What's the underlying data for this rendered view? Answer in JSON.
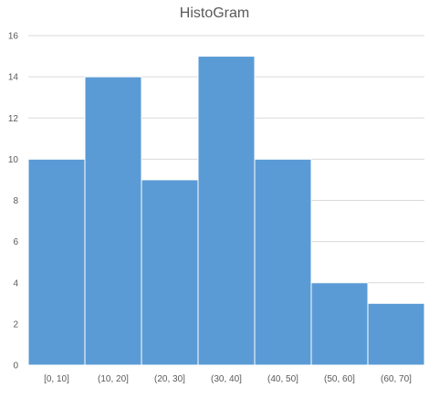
{
  "chart_data": {
    "type": "bar",
    "title": "HistoGram",
    "categories": [
      "[0, 10]",
      "(10, 20]",
      "(20, 30]",
      "(30, 40]",
      "(40, 50]",
      "(50, 60]",
      "(60, 70]"
    ],
    "values": [
      10,
      14,
      9,
      15,
      10,
      4,
      3
    ],
    "xlabel": "",
    "ylabel": "",
    "ylim": [
      0,
      16
    ],
    "yticks": [
      0,
      2,
      4,
      6,
      8,
      10,
      12,
      14,
      16
    ],
    "grid": true,
    "legend": "none",
    "bar_color": "#5b9bd5"
  }
}
